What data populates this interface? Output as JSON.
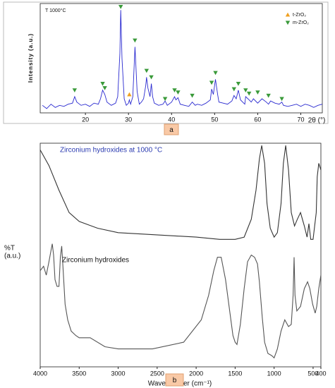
{
  "chart_data": [
    {
      "type": "line",
      "panel_label": "a",
      "annotation": "T 1000°C",
      "xlabel": "2θ (°)",
      "ylabel": "Intensity (a.u.)",
      "color": "#2a2ad0",
      "xlim": [
        9.5,
        75
      ],
      "ylim": [
        5,
        106
      ],
      "xticks": [
        20,
        30,
        40,
        50,
        60,
        70
      ],
      "x": [
        10,
        11,
        12,
        13,
        14,
        15,
        16,
        17,
        17.5,
        18,
        19,
        20,
        21,
        22,
        23,
        23.5,
        24,
        24.5,
        25,
        26,
        27,
        27.5,
        28,
        28.2,
        28.5,
        29,
        29.5,
        30,
        30.2,
        30.5,
        31,
        31.5,
        32,
        32.5,
        33,
        33.5,
        34,
        34.2,
        34.5,
        35,
        35.3,
        35.6,
        36,
        37,
        38,
        38.5,
        39,
        40,
        40.7,
        41,
        41.5,
        42,
        43,
        44,
        44.8,
        45.5,
        46,
        47,
        48,
        49,
        49.3,
        49.7,
        50.2,
        50.7,
        51,
        52,
        53,
        54,
        54.5,
        55,
        55.5,
        56,
        57,
        57.2,
        58,
        58.5,
        59,
        60,
        61,
        62,
        62.5,
        63,
        64,
        65,
        65.6,
        66,
        67,
        68,
        69,
        70,
        71,
        72,
        73,
        74,
        75
      ],
      "values": [
        12,
        9,
        13,
        10,
        12,
        11,
        13,
        14,
        20,
        15,
        12,
        13,
        11,
        14,
        13,
        18,
        26,
        22,
        15,
        12,
        14,
        20,
        60,
        100,
        55,
        18,
        12,
        14,
        17,
        13,
        20,
        66,
        25,
        13,
        15,
        18,
        30,
        38,
        28,
        20,
        32,
        20,
        14,
        12,
        13,
        16,
        12,
        15,
        20,
        17,
        19,
        13,
        12,
        11,
        15,
        12,
        13,
        12,
        14,
        17,
        27,
        22,
        36,
        22,
        15,
        14,
        13,
        16,
        21,
        18,
        26,
        17,
        13,
        20,
        17,
        15,
        18,
        14,
        18,
        15,
        13,
        16,
        14,
        13,
        15,
        12,
        11,
        12,
        13,
        11,
        13,
        12,
        10,
        12,
        13
      ],
      "markers": [
        {
          "name": "t-ZrO₂",
          "color": "#f0a020",
          "symbol": "triangle-up",
          "x": [
            30.2
          ],
          "y": [
            22
          ]
        },
        {
          "name": "m-ZrO₂",
          "color": "#3a9a3a",
          "symbol": "triangle-down",
          "x": [
            17.5,
            24,
            24.5,
            28.2,
            31.5,
            34.2,
            35.3,
            38.5,
            40.7,
            41.5,
            44.8,
            49.3,
            50.2,
            54.5,
            55.5,
            57.2,
            58,
            60,
            62.5,
            65.6
          ],
          "y": [
            26,
            32,
            28,
            103,
            72,
            44,
            38,
            18,
            26,
            24,
            21,
            33,
            42,
            27,
            32,
            26,
            23,
            24,
            21,
            18
          ]
        }
      ]
    },
    {
      "type": "line",
      "panel_label": "b",
      "xlabel": "Wavenumber (cm⁻¹)",
      "ylabel": [
        "%T",
        "(a.u.)"
      ],
      "xlim": [
        4000,
        400
      ],
      "ylim": [
        0,
        100
      ],
      "xticks": [
        4000,
        3500,
        3000,
        2500,
        2000,
        1500,
        1000,
        500,
        400
      ],
      "series": [
        {
          "name": "Zirconium hydroxides at 1000 °C",
          "color": "#333333",
          "x": [
            4000,
            3888,
            3759,
            3629,
            3500,
            3264,
            3000,
            2000,
            1698,
            1500,
            1384,
            1293,
            1232,
            1189,
            1159,
            1122,
            1091,
            1049,
            1000,
            958,
            911,
            881,
            851,
            815,
            780,
            738,
            702,
            661,
            613,
            577,
            554,
            530,
            500,
            460,
            447,
            427,
            400
          ],
          "values": [
            97,
            90,
            79,
            69,
            65,
            62,
            60,
            58,
            57,
            57,
            58,
            66,
            79,
            93,
            99,
            91,
            73,
            62,
            58,
            60,
            73,
            91,
            99,
            88,
            69,
            63,
            66,
            69,
            63,
            58,
            64,
            57,
            57,
            69,
            85,
            91,
            88
          ]
        },
        {
          "name": "Zirconium hydroxides",
          "color": "#555555",
          "x": [
            4000,
            3957,
            3922,
            3888,
            3862,
            3845,
            3828,
            3810,
            3784,
            3759,
            3741,
            3724,
            3707,
            3681,
            3647,
            3603,
            3543,
            3500,
            3359,
            3170,
            3000,
            2560,
            2160,
            1934,
            1840,
            1774,
            1727,
            1679,
            1623,
            1566,
            1528,
            1500,
            1476,
            1433,
            1384,
            1341,
            1293,
            1250,
            1213,
            1189,
            1152,
            1122,
            1079,
            1030,
            1000,
            958,
            911,
            863,
            815,
            780,
            756,
            744,
            732,
            708,
            661,
            613,
            571,
            542,
            506,
            473,
            453,
            427,
            400
          ],
          "values": [
            43,
            45,
            41,
            47,
            52,
            55,
            50,
            39,
            36,
            36,
            49,
            54,
            44,
            28,
            21,
            16,
            14,
            13,
            13,
            9,
            8,
            8,
            11,
            21,
            32,
            43,
            49,
            49,
            39,
            24,
            14,
            11,
            10,
            19,
            35,
            47,
            50,
            49,
            46,
            38,
            22,
            11,
            6,
            5,
            4,
            8,
            16,
            21,
            18,
            19,
            32,
            49,
            32,
            25,
            27,
            35,
            38,
            35,
            28,
            24,
            27,
            35,
            41
          ]
        }
      ]
    }
  ]
}
